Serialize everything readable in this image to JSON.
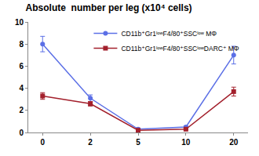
{
  "chart_data": {
    "type": "line",
    "title": "Absolute  number per leg (x10⁴ cells)",
    "categories": [
      "0",
      "2",
      "5",
      "10",
      "20"
    ],
    "series": [
      {
        "name": "CD11b⁺Gr1ˡᵒʷF4/80⁺SSCˡᵒʷ MΦ",
        "color": "#5b6fe6",
        "marker": "circle",
        "values": [
          8.0,
          3.1,
          0.3,
          0.5,
          7.0
        ],
        "errors": [
          0.7,
          0.3,
          0.1,
          0.1,
          0.8
        ]
      },
      {
        "name": "CD11b⁺Gr1ˡᵒʷF4/80⁺SSCˡᵒʷDARC⁺ MΦ",
        "color": "#a3202c",
        "marker": "square",
        "values": [
          3.3,
          2.6,
          0.2,
          0.3,
          3.7
        ],
        "errors": [
          0.3,
          0.2,
          0.05,
          0.05,
          0.4
        ]
      }
    ],
    "ylim": [
      0,
      10
    ],
    "yticks": [
      0,
      2,
      4,
      6,
      8,
      10
    ],
    "grid": false,
    "legend": "top right"
  }
}
